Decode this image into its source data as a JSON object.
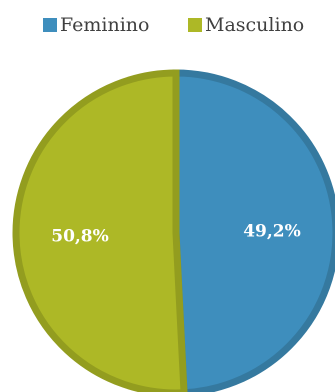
{
  "chart_data": {
    "type": "pie",
    "legend_position": "top",
    "slices": [
      {
        "name": "Feminino",
        "value": 49.2,
        "label": "49,2%",
        "color": "#3e8ebd",
        "edge": "#35799f"
      },
      {
        "name": "Masculino",
        "value": 50.8,
        "label": "50,8%",
        "color": "#adb826",
        "edge": "#939d1f"
      }
    ]
  }
}
